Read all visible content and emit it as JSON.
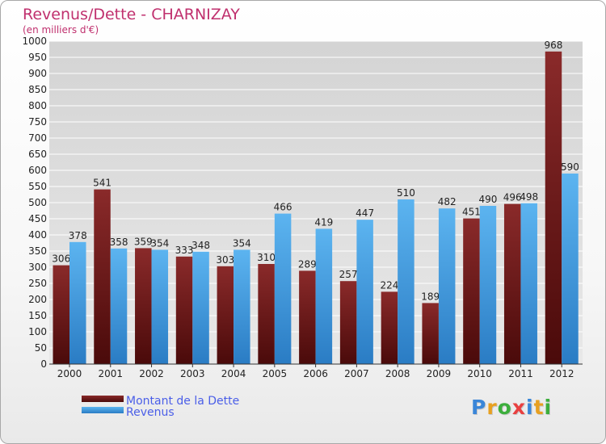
{
  "chart_data": {
    "type": "bar",
    "title": "Revenus/Dette - CHARNIZAY",
    "subtitle": "(en milliers d'€)",
    "xlabel": "",
    "ylabel": "",
    "ylim": [
      0,
      1000
    ],
    "ytick_step": 50,
    "grid": true,
    "legend_position": "bottom-left",
    "categories": [
      "2000",
      "2001",
      "2002",
      "2003",
      "2004",
      "2005",
      "2006",
      "2007",
      "2008",
      "2009",
      "2010",
      "2011",
      "2012"
    ],
    "series": [
      {
        "name": "Montant de la Dette",
        "color": "#7a1e1e",
        "values": [
          306,
          541,
          359,
          333,
          303,
          310,
          289,
          257,
          224,
          189,
          451,
          496,
          968
        ]
      },
      {
        "name": "Revenus",
        "color": "#4ea8e8",
        "values": [
          378,
          358,
          354,
          348,
          354,
          466,
          419,
          447,
          510,
          482,
          490,
          498,
          590
        ]
      }
    ]
  },
  "colors": {
    "title": "#c0306e",
    "legend_text": "#4a5ee8",
    "axis_text": "#222222",
    "grid": "#ffffff"
  },
  "logo": {
    "letters": [
      "P",
      "r",
      "o",
      "x",
      "i",
      "t",
      "i"
    ],
    "colors": [
      "#3a86d8",
      "#e8a020",
      "#3cae3c",
      "#e84040",
      "#3a86d8",
      "#e8a020",
      "#3cae3c"
    ]
  }
}
